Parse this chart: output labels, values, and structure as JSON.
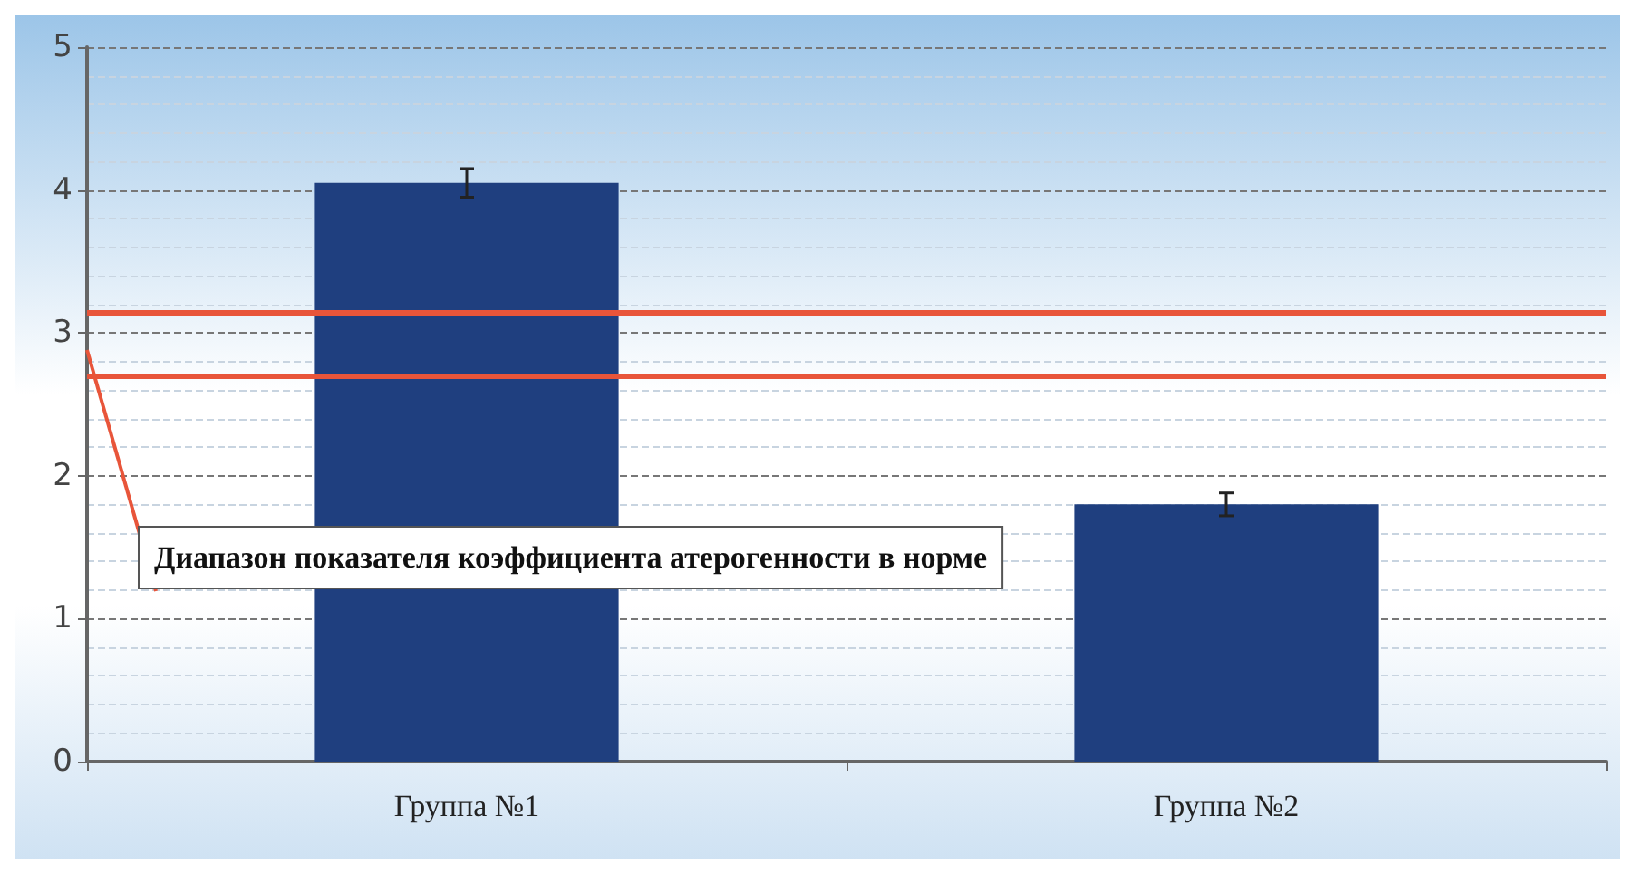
{
  "chart_data": {
    "type": "bar",
    "categories": [
      "Группа №1",
      "Группа №2"
    ],
    "values": [
      4.05,
      1.8
    ],
    "errors": [
      0.1,
      0.08
    ],
    "color": "#1f3f7f",
    "ylim": [
      0,
      5
    ],
    "yticks": [
      0,
      1,
      2,
      3,
      4,
      5
    ],
    "grid": "y",
    "ref_lines": [
      {
        "axis": "y",
        "value": 3.15,
        "color": "#e8553a"
      },
      {
        "axis": "y",
        "value": 2.7,
        "color": "#e8553a"
      }
    ],
    "annotations": [
      "Диапазон показателя коэффициента атерогенности в норме"
    ]
  }
}
